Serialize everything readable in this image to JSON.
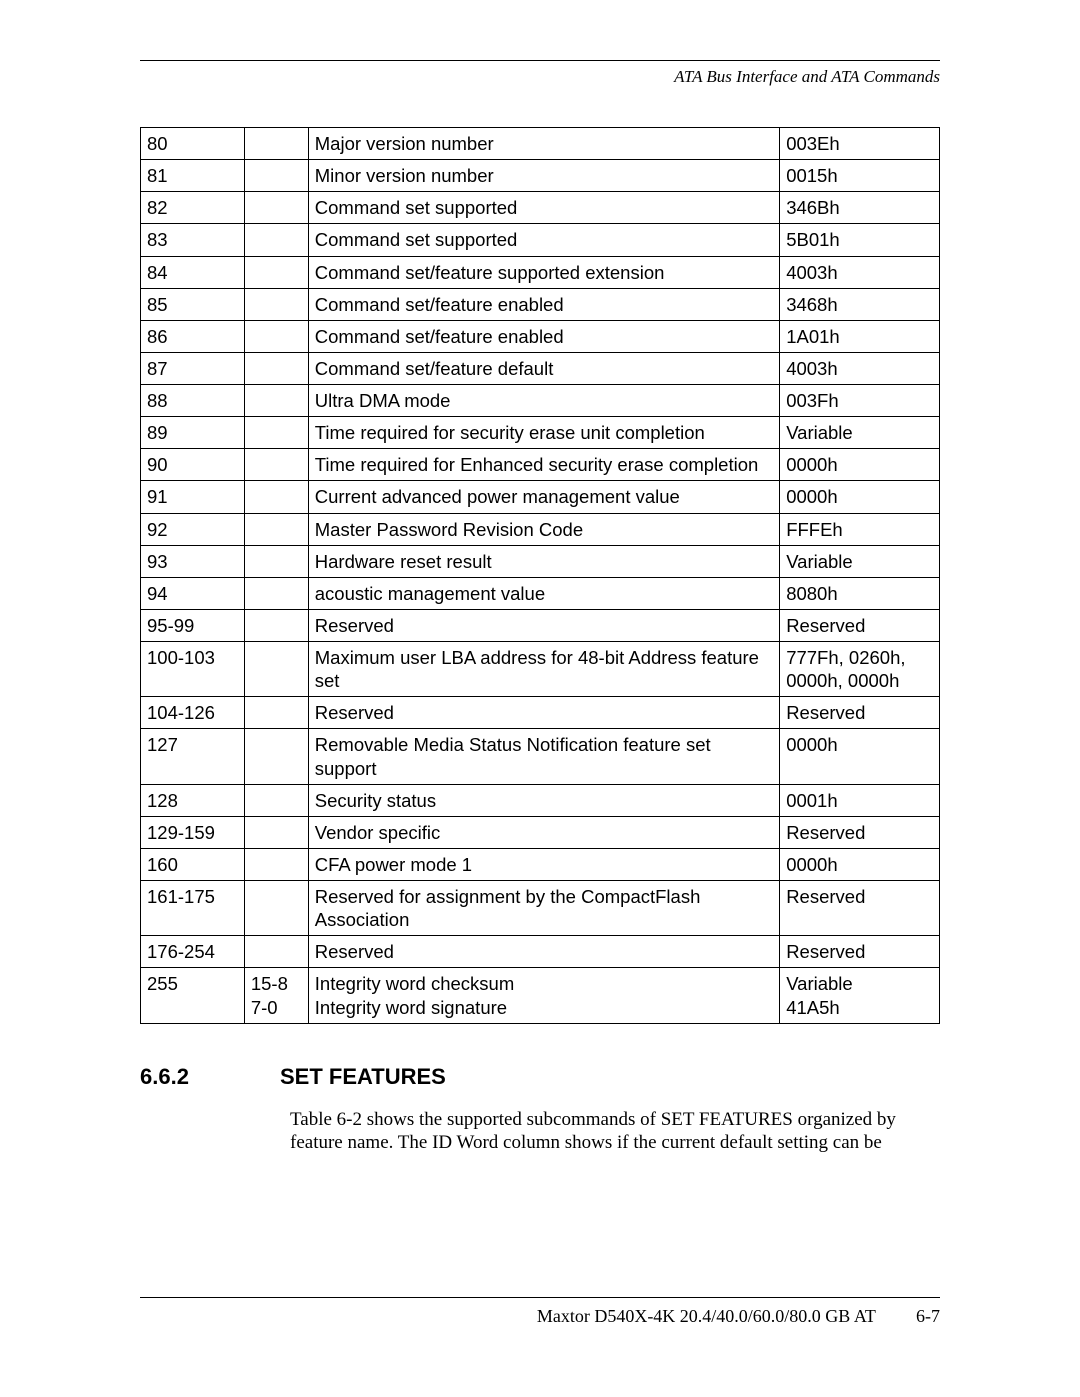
{
  "header": {
    "chapter_title": "ATA Bus Interface and ATA Commands"
  },
  "table": {
    "rows": [
      {
        "word": "80",
        "bits": "",
        "desc": "Major version number",
        "value": "003Eh"
      },
      {
        "word": "81",
        "bits": "",
        "desc": "Minor version number",
        "value": "0015h"
      },
      {
        "word": "82",
        "bits": "",
        "desc": "Command set supported",
        "value": "346Bh"
      },
      {
        "word": "83",
        "bits": "",
        "desc": "Command set supported",
        "value": "5B01h"
      },
      {
        "word": "84",
        "bits": "",
        "desc": "Command set/feature supported extension",
        "value": "4003h"
      },
      {
        "word": "85",
        "bits": "",
        "desc": "Command set/feature enabled",
        "value": "3468h"
      },
      {
        "word": "86",
        "bits": "",
        "desc": "Command set/feature enabled",
        "value": "1A01h"
      },
      {
        "word": "87",
        "bits": "",
        "desc": "Command set/feature default",
        "value": "4003h"
      },
      {
        "word": "88",
        "bits": "",
        "desc": "Ultra DMA mode",
        "value": "003Fh"
      },
      {
        "word": "89",
        "bits": "",
        "desc": "Time required for security erase unit completion",
        "value": "Variable"
      },
      {
        "word": "90",
        "bits": "",
        "desc": "Time required for Enhanced security erase completion",
        "value": "0000h"
      },
      {
        "word": "91",
        "bits": "",
        "desc": "Current advanced power management value",
        "value": "0000h"
      },
      {
        "word": "92",
        "bits": "",
        "desc": "Master Password Revision Code",
        "value": "FFFEh"
      },
      {
        "word": "93",
        "bits": "",
        "desc": "Hardware reset result",
        "value": "Variable"
      },
      {
        "word": "94",
        "bits": "",
        "desc": "acoustic management value",
        "value": "8080h"
      },
      {
        "word": "95-99",
        "bits": "",
        "desc": "Reserved",
        "value": "Reserved"
      },
      {
        "word": "100-103",
        "bits": "",
        "desc": "Maximum user LBA address for 48-bit Address feature set",
        "value": "777Fh, 0260h, 0000h, 0000h"
      },
      {
        "word": "104-126",
        "bits": "",
        "desc": "Reserved",
        "value": "Reserved"
      },
      {
        "word": "127",
        "bits": "",
        "desc": "Removable Media Status Notification feature set support",
        "value": "0000h"
      },
      {
        "word": "128",
        "bits": "",
        "desc": "Security status",
        "value": "0001h"
      },
      {
        "word": "129-159",
        "bits": "",
        "desc": "Vendor specific",
        "value": "Reserved"
      },
      {
        "word": "160",
        "bits": "",
        "desc": "CFA power mode 1",
        "value": "0000h"
      },
      {
        "word": "161-175",
        "bits": "",
        "desc": "Reserved for assignment by the CompactFlash Association",
        "value": "Reserved"
      },
      {
        "word": "176-254",
        "bits": "",
        "desc": "Reserved",
        "value": "Reserved"
      },
      {
        "word": "255",
        "bits": "15-8\n7-0",
        "desc": "Integrity word checksum\nIntegrity word signature",
        "value": "Variable\n41A5h"
      }
    ]
  },
  "section": {
    "number": "6.6.2",
    "title": "SET FEATURES"
  },
  "paragraph": "Table 6-2 shows the supported subcommands of SET FEATURES organized by feature name. The ID Word column shows if the current default setting can be",
  "footer": {
    "product": "Maxtor D540X-4K 20.4/40.0/60.0/80.0 GB AT",
    "page": "6-7"
  }
}
